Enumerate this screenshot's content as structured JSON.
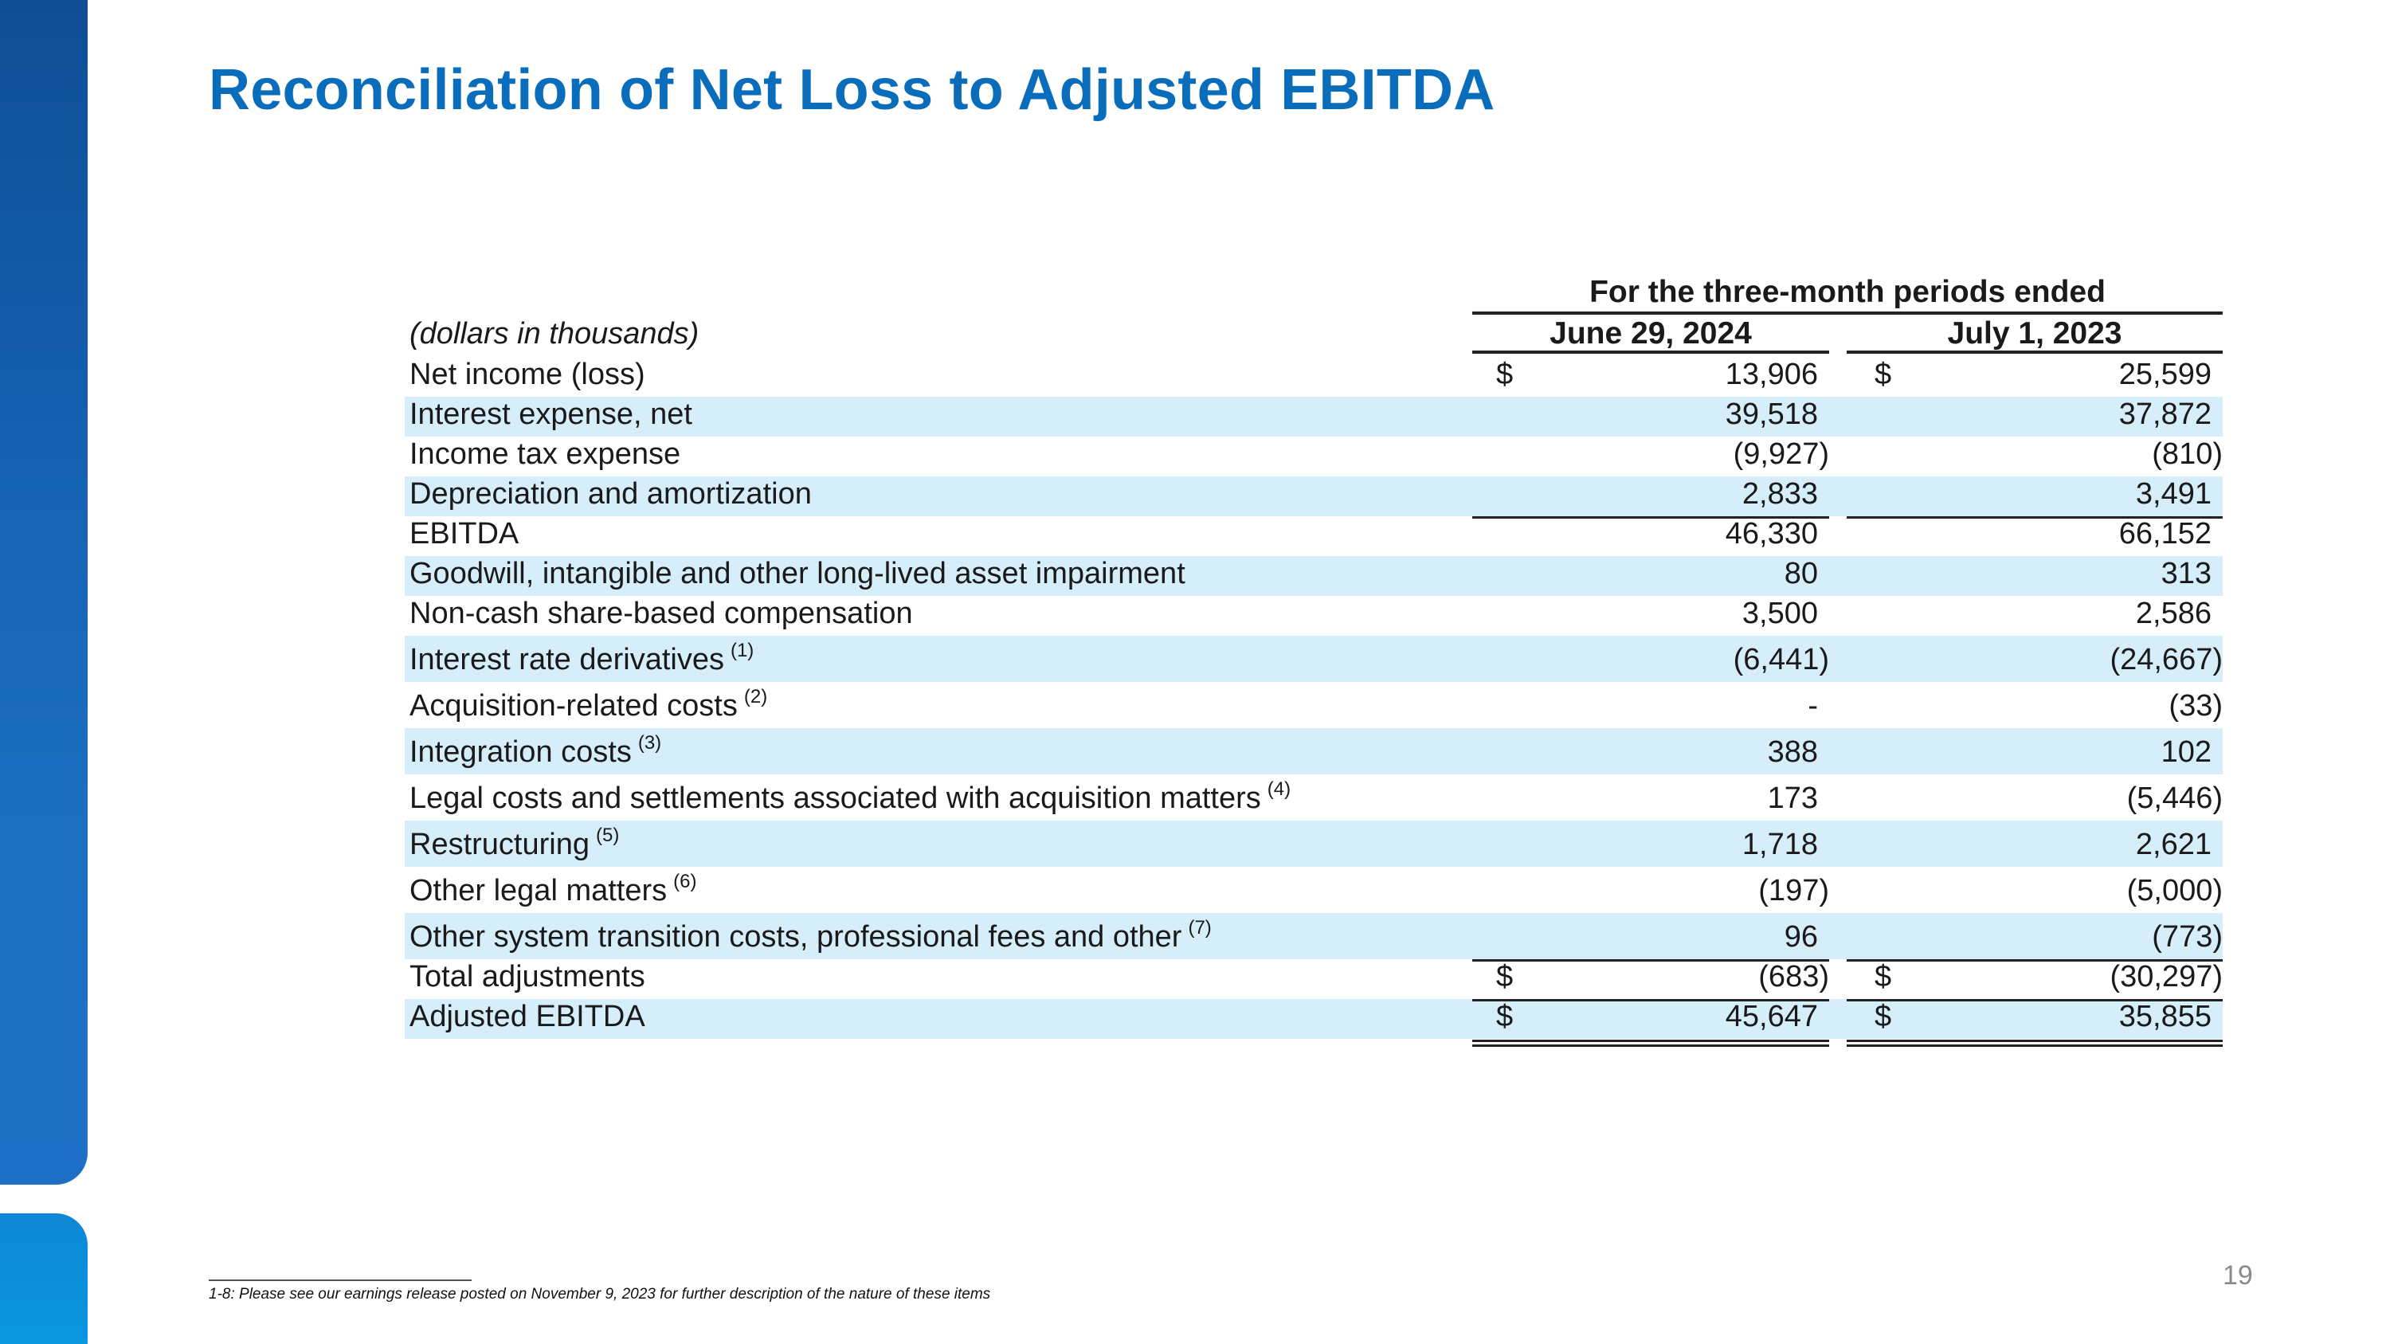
{
  "title": "Reconciliation of Net Loss to Adjusted EBITDA",
  "table": {
    "period_header": "For the three-month periods ended",
    "units_label": "(dollars in thousands)",
    "columns": [
      "June 29, 2024",
      "July 1, 2023"
    ],
    "rows": [
      {
        "label": "Net income (loss)",
        "note": "",
        "c1": "13,906",
        "c2": "25,599",
        "currency": "$",
        "shaded": false
      },
      {
        "label": "Interest expense, net",
        "note": "",
        "c1": "39,518",
        "c2": "37,872",
        "currency": "",
        "shaded": true
      },
      {
        "label": "Income tax expense",
        "note": "",
        "c1": "(9,927)",
        "c2": "(810)",
        "currency": "",
        "shaded": false
      },
      {
        "label": "Depreciation and amortization",
        "note": "",
        "c1": "2,833",
        "c2": "3,491",
        "currency": "",
        "shaded": true
      },
      {
        "label": "EBITDA",
        "note": "",
        "c1": "46,330",
        "c2": "66,152",
        "currency": "",
        "shaded": false
      },
      {
        "label": "Goodwill, intangible and other long-lived asset impairment",
        "note": "",
        "c1": "80",
        "c2": "313",
        "currency": "",
        "shaded": true
      },
      {
        "label": "Non-cash share-based compensation",
        "note": "",
        "c1": "3,500",
        "c2": "2,586",
        "currency": "",
        "shaded": false
      },
      {
        "label": "Interest rate derivatives",
        "note": "(1)",
        "c1": "(6,441)",
        "c2": "(24,667)",
        "currency": "",
        "shaded": true
      },
      {
        "label": "Acquisition-related costs",
        "note": "(2)",
        "c1": "-",
        "c2": "(33)",
        "currency": "",
        "shaded": false
      },
      {
        "label": "Integration costs",
        "note": "(3)",
        "c1": "388",
        "c2": "102",
        "currency": "",
        "shaded": true
      },
      {
        "label": "Legal costs and settlements associated with acquisition matters",
        "note": "(4)",
        "c1": "173",
        "c2": "(5,446)",
        "currency": "",
        "shaded": false
      },
      {
        "label": "Restructuring",
        "note": "(5)",
        "c1": "1,718",
        "c2": "2,621",
        "currency": "",
        "shaded": true
      },
      {
        "label": "Other legal matters",
        "note": "(6)",
        "c1": "(197)",
        "c2": "(5,000)",
        "currency": "",
        "shaded": false
      },
      {
        "label": "Other system transition costs, professional fees and other",
        "note": "(7)",
        "c1": "96",
        "c2": "(773)",
        "currency": "",
        "shaded": true
      },
      {
        "label": "Total adjustments",
        "note": "",
        "c1": "(683)",
        "c2": "(30,297)",
        "currency": "$",
        "shaded": false
      },
      {
        "label": "Adjusted EBITDA",
        "note": "",
        "c1": "45,647",
        "c2": "35,855",
        "currency": "$",
        "shaded": true
      }
    ]
  },
  "footnote": "1-8: Please see our earnings release posted on November 9, 2023 for further description of the nature of these items",
  "page_number": "19",
  "colors": {
    "title": "#0a6dbb",
    "sidebar": "#155fb0",
    "sidebar_accent": "#0b96e0",
    "row_shading": "#d5eef9"
  }
}
